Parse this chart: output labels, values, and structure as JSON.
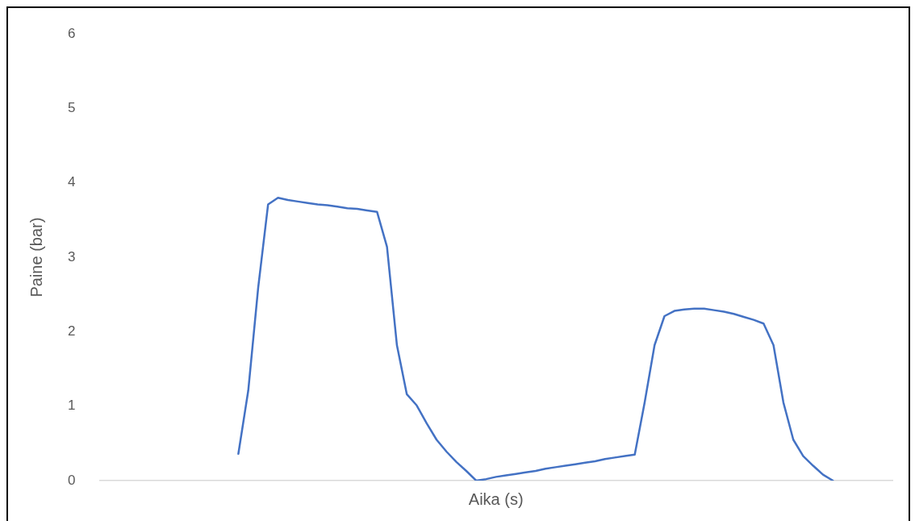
{
  "chart_data": {
    "type": "line",
    "xlabel": "Aika (s)",
    "ylabel": "Paine (bar)",
    "categories": [
      null,
      null,
      null,
      null,
      null,
      null,
      null,
      null,
      null,
      null,
      null,
      null,
      null,
      null,
      null,
      null,
      null,
      null,
      null,
      null,
      null,
      null,
      null,
      null,
      null,
      null,
      null,
      null,
      null,
      null,
      null,
      null,
      null,
      null,
      null,
      null,
      null,
      null,
      null,
      null,
      null,
      null,
      null,
      null,
      null,
      null,
      null,
      null,
      null,
      null,
      null,
      null,
      null,
      null,
      null,
      null,
      null,
      null,
      null,
      null,
      null,
      null,
      null,
      null,
      null,
      null,
      null,
      null,
      null,
      null,
      null,
      null,
      null,
      null,
      null,
      null,
      null,
      null,
      null,
      null,
      null
    ],
    "series": [
      {
        "color": "#4472c4",
        "values": [
          null,
          null,
          null,
          null,
          null,
          null,
          null,
          null,
          null,
          null,
          null,
          null,
          null,
          null,
          0.36,
          1.21,
          2.59,
          3.71,
          3.8,
          3.77,
          3.75,
          3.73,
          3.71,
          3.7,
          3.68,
          3.66,
          3.65,
          3.63,
          3.61,
          3.14,
          1.82,
          1.16,
          1.01,
          0.77,
          0.55,
          0.39,
          0.25,
          0.13,
          0,
          0.02,
          0.05,
          0.07,
          0.09,
          0.11,
          0.13,
          0.16,
          0.18,
          0.2,
          0.22,
          0.24,
          0.26,
          0.29,
          0.31,
          0.33,
          0.35,
          1.05,
          1.82,
          2.21,
          2.28,
          2.3,
          2.31,
          2.31,
          2.29,
          2.27,
          2.24,
          2.2,
          2.16,
          2.11,
          1.82,
          1.05,
          0.55,
          0.33,
          0.2,
          0.08,
          0,
          null,
          null,
          null,
          null,
          null,
          null
        ]
      }
    ],
    "ylim": [
      0,
      6
    ],
    "yticks": [
      0,
      1,
      2,
      3,
      4,
      5,
      6
    ],
    "grid": false,
    "legend": false,
    "marker": "none",
    "line_style": "solid",
    "tick_labels": "y"
  }
}
